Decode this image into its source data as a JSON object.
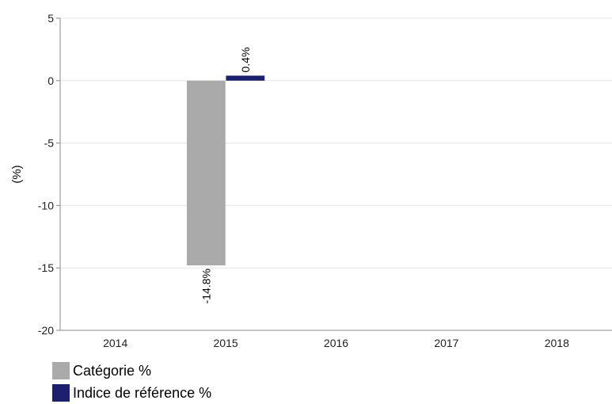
{
  "chart_data": {
    "type": "bar",
    "title": "",
    "xlabel": "",
    "ylabel": "(%)",
    "categories": [
      "2014",
      "2015",
      "2016",
      "2017",
      "2018"
    ],
    "ylim": [
      -20,
      5
    ],
    "yticks": [
      5,
      0,
      -5,
      -10,
      -15,
      -20
    ],
    "grid": true,
    "legend_position": "bottom-left",
    "series": [
      {
        "name": "Catégorie %",
        "color": "#aaaaaa",
        "values": [
          null,
          -14.8,
          null,
          null,
          null
        ],
        "labels": [
          null,
          "-14.8%",
          null,
          null,
          null
        ]
      },
      {
        "name": "Indice de référence %",
        "color": "#1c1f6b",
        "values": [
          null,
          0.4,
          null,
          null,
          null
        ],
        "labels": [
          null,
          "0.4%",
          null,
          null,
          null
        ]
      }
    ]
  }
}
